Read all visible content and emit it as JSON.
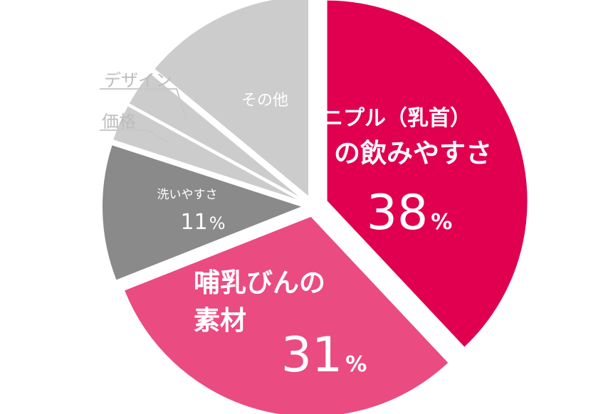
{
  "chart_data": {
    "type": "pie",
    "slices": [
      {
        "key": "nipple",
        "name": "ニプル（乳首）の飲みやすさ",
        "name_line1": "ニプル（乳首）",
        "name_line2": "の飲みやすさ",
        "value": 38,
        "value_text": "38",
        "unit": "%",
        "color": "#e0004f",
        "label_color": "#ffffff"
      },
      {
        "key": "material",
        "name": "哺乳びんの素材",
        "name_line1": "哺乳びんの",
        "name_line2": "素材",
        "value": 31,
        "value_text": "31",
        "unit": "%",
        "color": "#ea4b80",
        "label_color": "#ffffff"
      },
      {
        "key": "wash",
        "name": "洗いやすさ",
        "value": 11,
        "value_text": "11",
        "unit": "%",
        "color": "#8a8a8a",
        "label_color": "#ffffff"
      },
      {
        "key": "price",
        "name": "価格",
        "value": 3,
        "color": "#cccccc",
        "label_color": "#bdbdbd"
      },
      {
        "key": "design",
        "name": "デザイン",
        "value": 3,
        "color": "#cccccc",
        "label_color": "#bdbdbd"
      },
      {
        "key": "other",
        "name": "その他",
        "value": 14,
        "color": "#cccccc",
        "label_color": "#ffffff"
      }
    ]
  }
}
